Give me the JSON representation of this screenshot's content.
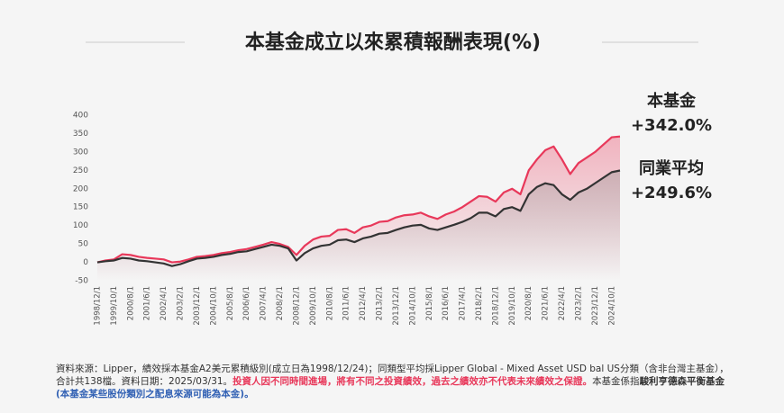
{
  "chart_data": {
    "type": "line",
    "title": "本基金成立以來累積報酬表現(%)",
    "categories": [
      "1998/12/1",
      null,
      "1999/10/1",
      null,
      "2000/8/1",
      null,
      "2001/6/1",
      null,
      "2002/4/1",
      null,
      "2003/2/1",
      null,
      "2003/12/1",
      null,
      "2004/10/1",
      null,
      "2005/8/1",
      null,
      "2006/6/1",
      null,
      "2007/4/1",
      null,
      "2008/2/1",
      null,
      "2008/12/1",
      null,
      "2009/10/1",
      null,
      "2010/8/1",
      null,
      "2011/6/1",
      null,
      "2012/4/1",
      null,
      "2013/2/1",
      null,
      "2013/12/1",
      null,
      "2014/10/1",
      null,
      "2015/8/1",
      null,
      "2016/6/1",
      null,
      "2017/4/1",
      null,
      "2018/2/1",
      null,
      "2018/12/1",
      null,
      "2019/10/1",
      null,
      "2020/8/1",
      null,
      "2021/6/1",
      null,
      "2022/4/1",
      null,
      "2023/2/1",
      null,
      "2023/12/1",
      null,
      "2024/10/1",
      null
    ],
    "series": [
      {
        "name": "本基金",
        "color": "#e8385a",
        "values": [
          0,
          5,
          8,
          22,
          20,
          15,
          12,
          10,
          8,
          0,
          2,
          8,
          15,
          17,
          20,
          25,
          28,
          33,
          36,
          42,
          48,
          55,
          50,
          42,
          20,
          45,
          62,
          70,
          72,
          88,
          90,
          80,
          95,
          100,
          110,
          112,
          122,
          128,
          130,
          135,
          125,
          118,
          130,
          138,
          150,
          165,
          180,
          178,
          165,
          190,
          200,
          185,
          250,
          280,
          305,
          315,
          280,
          240,
          270,
          285,
          300,
          320,
          340,
          342
        ]
      },
      {
        "name": "同業平均",
        "color": "#333333",
        "values": [
          0,
          3,
          5,
          12,
          10,
          5,
          3,
          0,
          -3,
          -10,
          -5,
          3,
          10,
          12,
          15,
          20,
          23,
          28,
          30,
          36,
          42,
          48,
          45,
          38,
          5,
          25,
          38,
          45,
          48,
          60,
          62,
          55,
          65,
          70,
          78,
          80,
          88,
          95,
          100,
          102,
          92,
          88,
          95,
          102,
          110,
          120,
          135,
          135,
          125,
          145,
          150,
          140,
          185,
          205,
          215,
          210,
          185,
          170,
          190,
          200,
          215,
          230,
          245,
          249.6
        ]
      }
    ],
    "end_labels": [
      "+342.0%",
      "+249.6%"
    ],
    "ylim": [
      -50,
      400
    ],
    "yticks": [
      -50,
      0,
      50,
      100,
      150,
      200,
      250,
      300,
      350,
      400
    ],
    "grid": false
  },
  "footnote": [
    {
      "text": "資料來源：Lipper，績效採本基金A2美元累積級別(成立日為1998/12/24)；同類型平均採Lipper Global - Mixed Asset USD bal US分類（含非台灣主基金），合計共138檔。資料日期：2025/03/31。",
      "color": "#333333",
      "bold": false
    },
    {
      "text": "投資人因不同時間進場，將有不同之投資績效，過去之績效亦不代表未來績效之保證。",
      "color": "#e8385a",
      "bold": true
    },
    {
      "text": "本基金係指",
      "color": "#333333",
      "bold": false
    },
    {
      "text": "駿利亨德森平衡基金",
      "color": "#333333",
      "bold": true
    },
    {
      "text": "(本基金某些股份類別之配息來源可能為本金)。",
      "color": "#2f5fb3",
      "bold": true
    }
  ]
}
